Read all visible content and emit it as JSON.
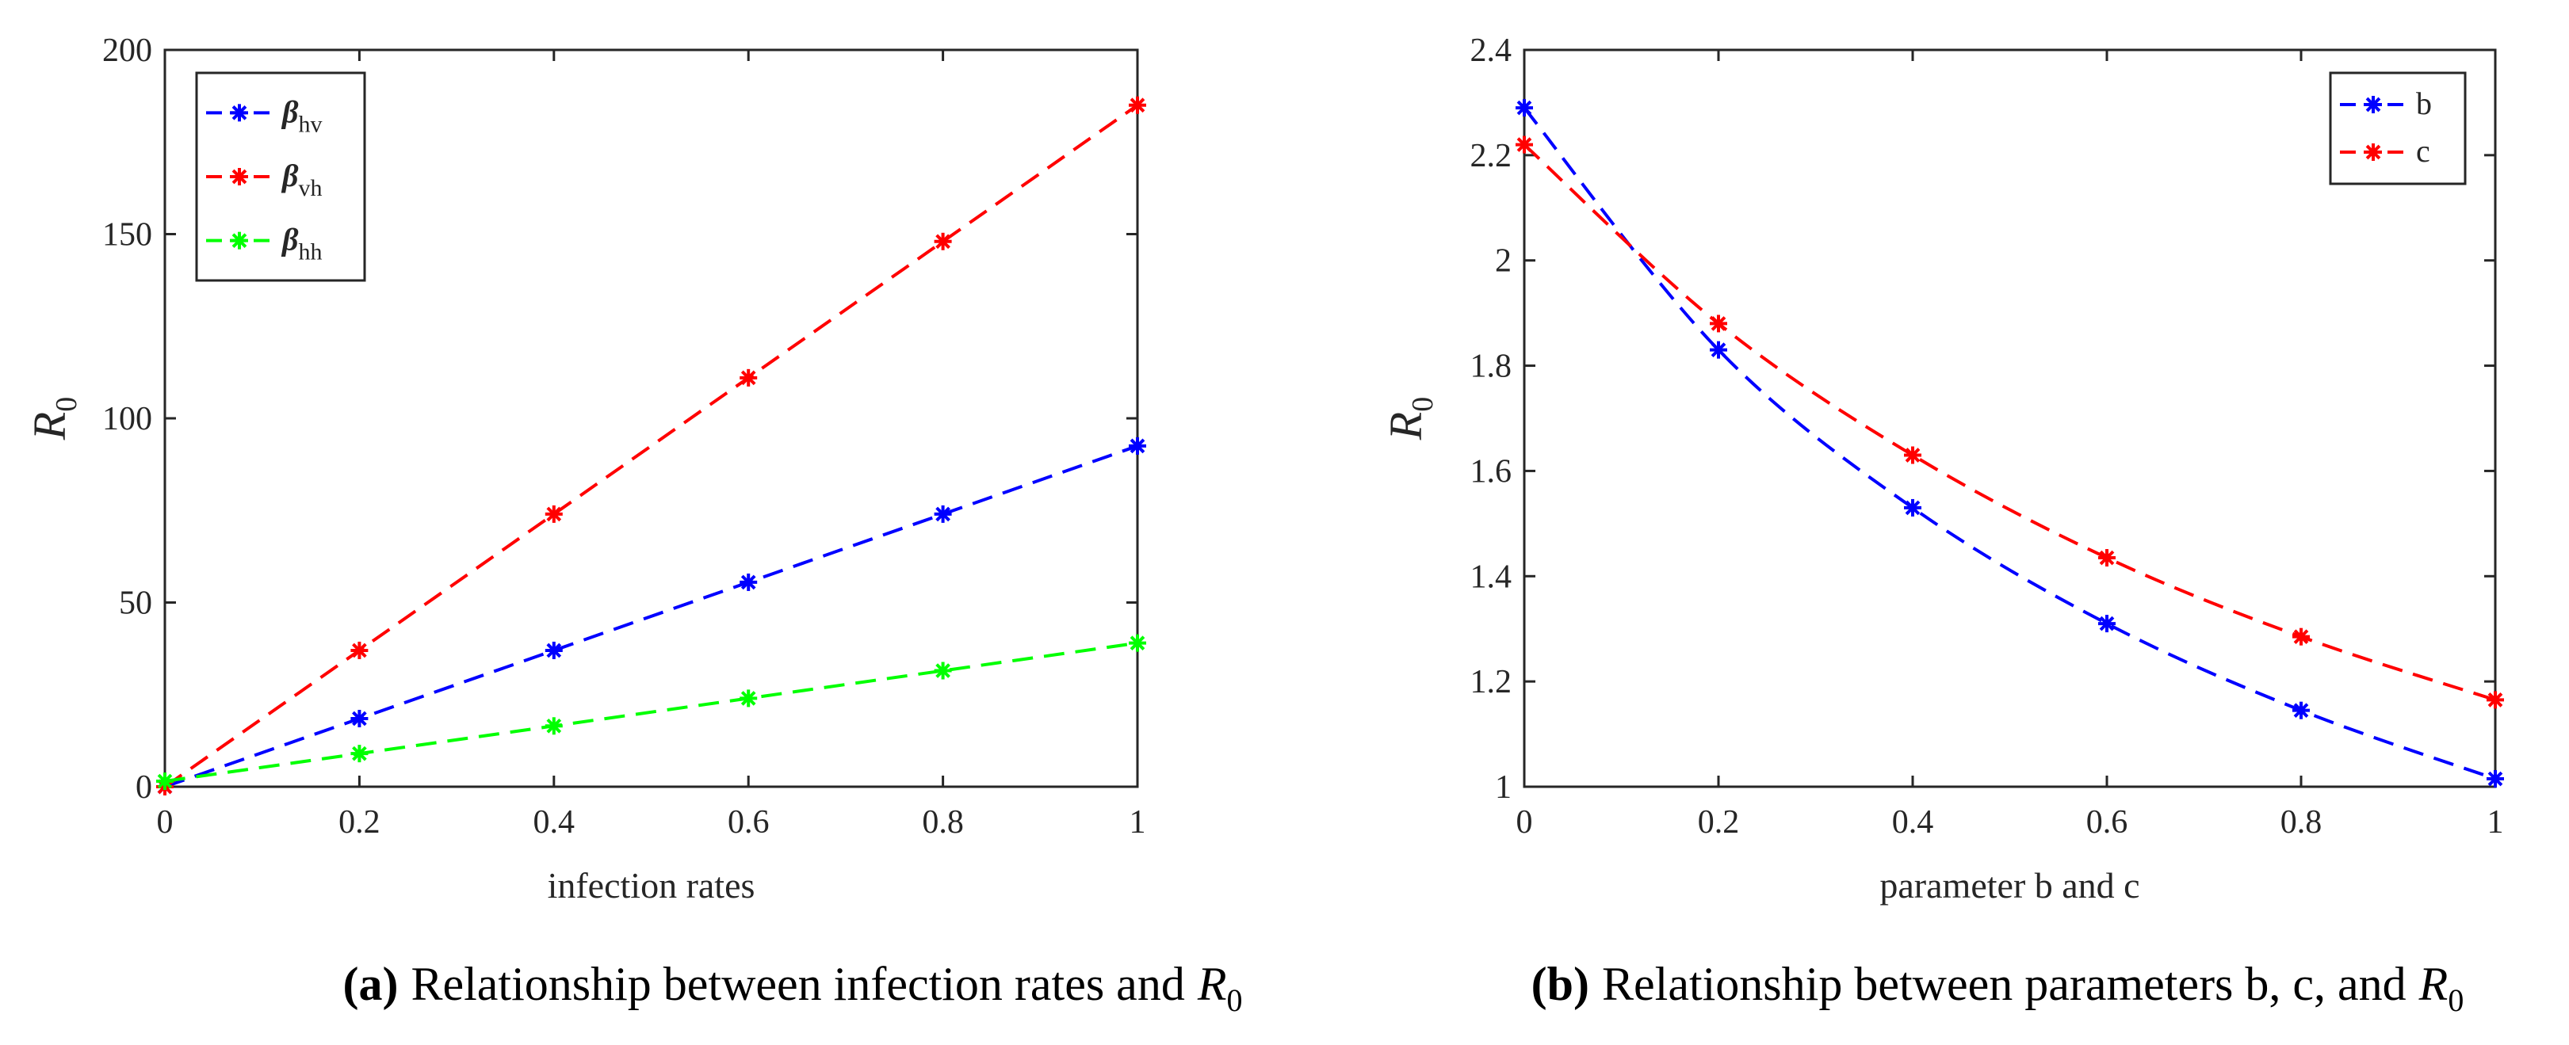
{
  "charts": [
    {
      "id": "a",
      "type": "line",
      "x": [
        0,
        0.2,
        0.4,
        0.6,
        0.8,
        1
      ],
      "xlim": [
        0,
        1
      ],
      "ylim": [
        0,
        200
      ],
      "xticks": [
        "0",
        "0.2",
        "0.4",
        "0.6",
        "0.8",
        "1"
      ],
      "yticks": [
        "0",
        "50",
        "100",
        "150",
        "200"
      ],
      "xlabel": "infection rates",
      "ylabel_main": "R",
      "ylabel_sub": "0",
      "legend_position": "top-left",
      "series": [
        {
          "name_main": "β",
          "name_sub": "hv",
          "color": "#0000ff",
          "values": [
            0,
            18.5,
            37,
            55.5,
            74,
            92.5
          ]
        },
        {
          "name_main": "β",
          "name_sub": "vh",
          "color": "#ff0000",
          "values": [
            0,
            37,
            74,
            111,
            148,
            185
          ]
        },
        {
          "name_main": "β",
          "name_sub": "hh",
          "color": "#00ff00",
          "values": [
            1.5,
            9,
            16.5,
            24,
            31.5,
            39
          ]
        }
      ],
      "caption_letter": "(a)",
      "caption_text": "Relationship between infection rates and",
      "caption_symbol": "R",
      "caption_symbol_sub": "0"
    },
    {
      "id": "b",
      "type": "line",
      "x": [
        0,
        0.2,
        0.4,
        0.6,
        0.8,
        1
      ],
      "xlim": [
        0,
        1
      ],
      "ylim": [
        1,
        2.4
      ],
      "xticks": [
        "0",
        "0.2",
        "0.4",
        "0.6",
        "0.8",
        "1"
      ],
      "yticks": [
        "1",
        "1.2",
        "1.4",
        "1.6",
        "1.8",
        "2",
        "2.2",
        "2.4"
      ],
      "xlabel": "parameter b and c",
      "ylabel_main": "R",
      "ylabel_sub": "0",
      "legend_position": "top-right",
      "series": [
        {
          "name_main": "b",
          "name_sub": "",
          "color": "#0000ff",
          "values": [
            2.29,
            1.83,
            1.53,
            1.31,
            1.145,
            1.015
          ]
        },
        {
          "name_main": "c",
          "name_sub": "",
          "color": "#ff0000",
          "values": [
            2.22,
            1.88,
            1.63,
            1.435,
            1.285,
            1.165
          ]
        }
      ],
      "caption_letter": "(b)",
      "caption_text": "Relationship between parameters b, c, and",
      "caption_symbol": "R",
      "caption_symbol_sub": "0"
    }
  ]
}
